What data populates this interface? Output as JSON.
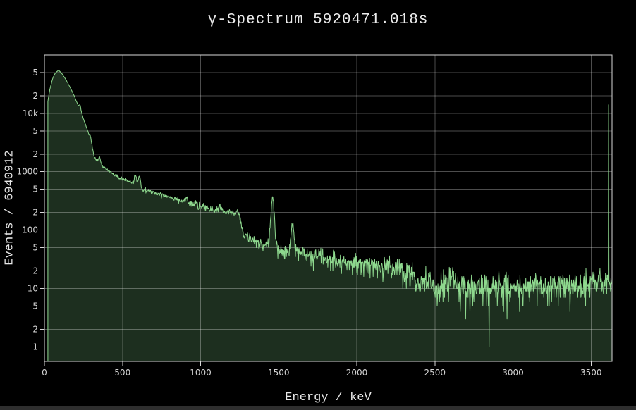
{
  "window": {
    "bottom_strip_color": "#2e2e2e"
  },
  "chart_data": {
    "type": "area",
    "title": "γ-Spectrum 5920471.018s",
    "xlabel": "Energy / keV",
    "ylabel": "Events / 6940912",
    "y_scale": "log",
    "grid": true,
    "x_range": [
      0,
      3634
    ],
    "y_range_log": [
      0.562,
      100000
    ],
    "x_ticks": [
      {
        "v": 0,
        "label": "0"
      },
      {
        "v": 500,
        "label": "500"
      },
      {
        "v": 1000,
        "label": "1000"
      },
      {
        "v": 1500,
        "label": "1500"
      },
      {
        "v": 2000,
        "label": "2000"
      },
      {
        "v": 2500,
        "label": "2500"
      },
      {
        "v": 3000,
        "label": "3000"
      },
      {
        "v": 3500,
        "label": "3500"
      }
    ],
    "y_ticks": [
      {
        "v": 1,
        "label": "1"
      },
      {
        "v": 2,
        "label": "2"
      },
      {
        "v": 5,
        "label": "5"
      },
      {
        "v": 10,
        "label": "10"
      },
      {
        "v": 20,
        "label": "2"
      },
      {
        "v": 50,
        "label": "5"
      },
      {
        "v": 100,
        "label": "100"
      },
      {
        "v": 200,
        "label": "2"
      },
      {
        "v": 500,
        "label": "5"
      },
      {
        "v": 1000,
        "label": "1000"
      },
      {
        "v": 2000,
        "label": "2"
      },
      {
        "v": 5000,
        "label": "5"
      },
      {
        "v": 10000,
        "label": "10k"
      },
      {
        "v": 20000,
        "label": "2"
      },
      {
        "v": 50000,
        "label": "5"
      }
    ],
    "x_start_kev": 22,
    "bin_width_kev": 2.5,
    "envelope_points": [
      [
        22,
        16000
      ],
      [
        30,
        22000
      ],
      [
        40,
        30000
      ],
      [
        55,
        41000
      ],
      [
        70,
        49000
      ],
      [
        88,
        54500
      ],
      [
        100,
        52000
      ],
      [
        115,
        46500
      ],
      [
        132,
        40000
      ],
      [
        150,
        33000
      ],
      [
        170,
        26000
      ],
      [
        190,
        20000
      ],
      [
        210,
        15000
      ],
      [
        225,
        12200
      ],
      [
        240,
        9600
      ],
      [
        258,
        7000
      ],
      [
        275,
        5200
      ],
      [
        292,
        3800
      ],
      [
        308,
        2500
      ],
      [
        319,
        1800
      ],
      [
        335,
        1560
      ],
      [
        355,
        1400
      ],
      [
        375,
        1230
      ],
      [
        394,
        1130
      ],
      [
        420,
        990
      ],
      [
        450,
        870
      ],
      [
        480,
        790
      ],
      [
        510,
        730
      ],
      [
        545,
        670
      ],
      [
        580,
        640
      ],
      [
        600,
        580
      ],
      [
        625,
        510
      ],
      [
        660,
        470
      ],
      [
        700,
        440
      ],
      [
        760,
        398
      ],
      [
        815,
        366
      ],
      [
        860,
        332
      ],
      [
        911,
        300
      ],
      [
        960,
        268
      ],
      [
        1010,
        246
      ],
      [
        1060,
        230
      ],
      [
        1117,
        216
      ],
      [
        1165,
        206
      ],
      [
        1210,
        197
      ],
      [
        1247,
        186
      ],
      [
        1255,
        140
      ],
      [
        1265,
        100
      ],
      [
        1285,
        82
      ],
      [
        1315,
        71
      ],
      [
        1355,
        62
      ],
      [
        1400,
        56
      ],
      [
        1445,
        51
      ],
      [
        1480,
        47
      ],
      [
        1520,
        44
      ],
      [
        1565,
        43
      ],
      [
        1615,
        41
      ],
      [
        1660,
        38
      ],
      [
        1710,
        36
      ],
      [
        1770,
        34
      ],
      [
        1830,
        31.5
      ],
      [
        1900,
        29.5
      ],
      [
        1975,
        28
      ],
      [
        2050,
        26
      ],
      [
        2125,
        24
      ],
      [
        2200,
        22.5
      ],
      [
        2270,
        21
      ],
      [
        2330,
        18
      ],
      [
        2370,
        15.5
      ],
      [
        2430,
        13
      ],
      [
        2490,
        11.8
      ],
      [
        2560,
        11
      ],
      [
        2620,
        11
      ],
      [
        2700,
        10.5
      ],
      [
        2800,
        10.3
      ],
      [
        2900,
        10.4
      ],
      [
        3000,
        10.8
      ],
      [
        3100,
        11
      ],
      [
        3200,
        11.3
      ],
      [
        3320,
        11.6
      ],
      [
        3450,
        12
      ],
      [
        3634,
        12.5
      ]
    ],
    "peaks": [
      {
        "center_kev": 228,
        "amplitude": 2200,
        "sigma_kev": 5
      },
      {
        "center_kev": 295,
        "amplitude": 500,
        "sigma_kev": 5
      },
      {
        "center_kev": 352,
        "amplitude": 380,
        "sigma_kev": 5.5
      },
      {
        "center_kev": 583,
        "amplitude": 260,
        "sigma_kev": 6
      },
      {
        "center_kev": 609,
        "amplitude": 330,
        "sigma_kev": 6
      },
      {
        "center_kev": 911,
        "amplitude": 52,
        "sigma_kev": 7
      },
      {
        "center_kev": 969,
        "amplitude": 25,
        "sigma_kev": 7
      },
      {
        "center_kev": 1120,
        "amplitude": 34,
        "sigma_kev": 8
      },
      {
        "center_kev": 1238,
        "amplitude": 25,
        "sigma_kev": 7
      },
      {
        "center_kev": 1461,
        "amplitude": 305,
        "sigma_kev": 9
      },
      {
        "center_kev": 1588,
        "amplitude": 84,
        "sigma_kev": 8
      },
      {
        "center_kev": 1764,
        "amplitude": 7,
        "sigma_kev": 8
      },
      {
        "center_kev": 2204,
        "amplitude": 4.5,
        "sigma_kev": 9
      },
      {
        "center_kev": 2614,
        "amplitude": 5.5,
        "sigma_kev": 10
      }
    ],
    "overflow_spike": {
      "energy_kev": 3612,
      "counts": 14000
    },
    "dropout_bins": [
      {
        "energy_kev": 2697,
        "counts": 3
      },
      {
        "energy_kev": 2847,
        "counts": 1
      }
    ],
    "noise_seed": 42,
    "colors": {
      "line": "#8ed88e",
      "fill": "#1d2f1f",
      "grid": "rgba(255,255,255,0.30)",
      "frame": "#d9d9d9",
      "tick_label": "#d4d4d4",
      "axis_label": "#e8e8e8",
      "title": "#ececec",
      "background": "#000000"
    }
  }
}
